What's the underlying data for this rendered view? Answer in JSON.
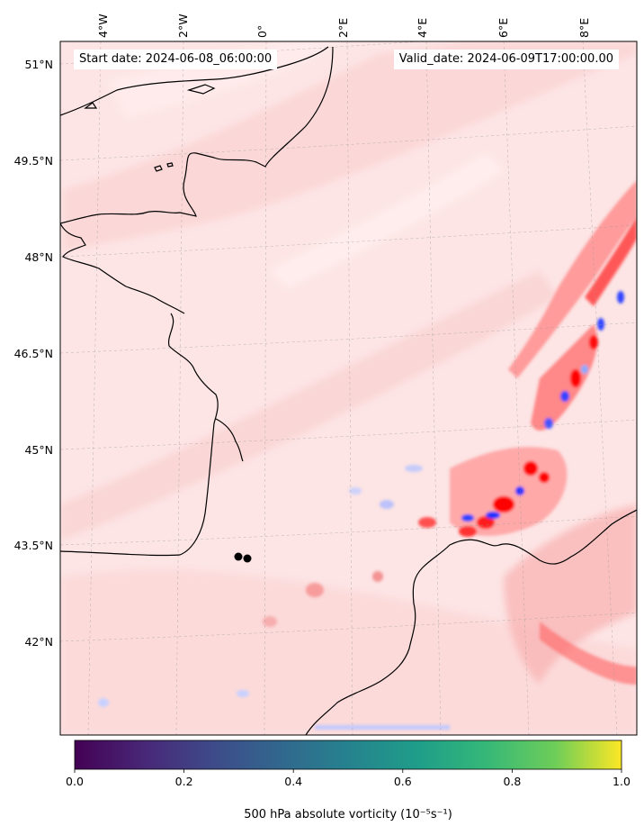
{
  "header": {
    "start_date": "Start date: 2024-06-08_06:00:00",
    "valid_date": "Valid_date: 2024-06-09T17:00:00.00"
  },
  "map": {
    "longitude_labels": [
      "4°W",
      "2°W",
      "0°",
      "2°E",
      "4°E",
      "6°E",
      "8°E"
    ],
    "latitude_labels": [
      "51°N",
      "49.5°N",
      "48°N",
      "46.5°N",
      "45°N",
      "43.5°N",
      "42°N"
    ],
    "field_colors": {
      "positive": "#ff0000",
      "negative": "#0022ff",
      "background": "#fde5e5"
    },
    "markers": [
      {
        "label": "",
        "lon": -0.35,
        "lat": 43.3
      },
      {
        "label": "",
        "lon": -0.1,
        "lat": 43.25
      }
    ]
  },
  "colorbar": {
    "colormap": "viridis",
    "ticks": [
      "0.0",
      "0.2",
      "0.4",
      "0.6",
      "0.8",
      "1.0"
    ],
    "label": "500 hPa absolute vorticity (10⁻⁵s⁻¹)"
  }
}
